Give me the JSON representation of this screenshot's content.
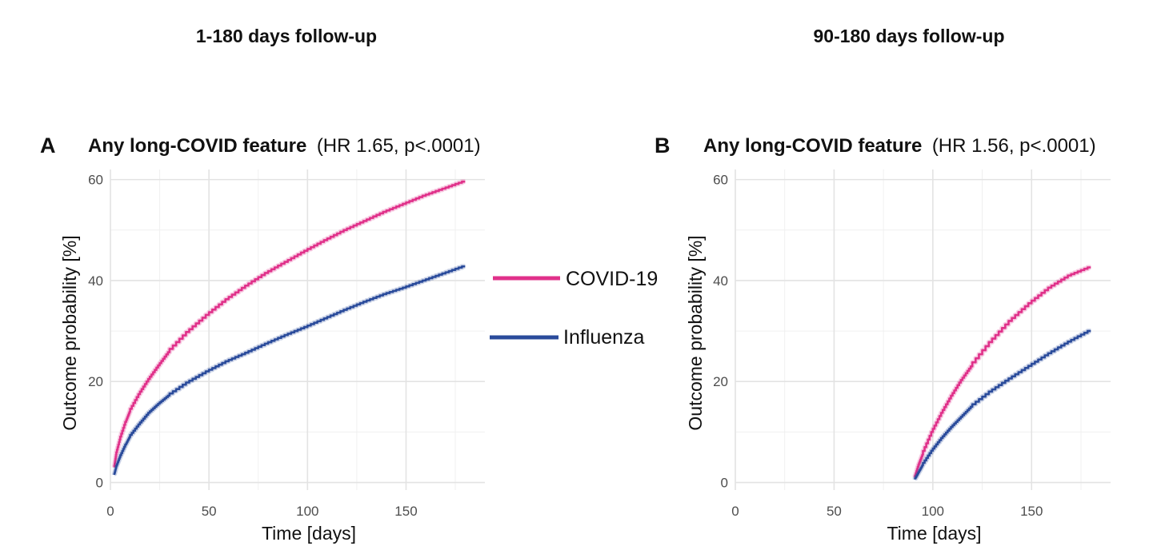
{
  "column_titles": [
    "1-180 days follow-up",
    "90-180 days follow-up"
  ],
  "legend": {
    "position": "center",
    "entries": [
      {
        "label": "COVID-19",
        "color": "#e0318a"
      },
      {
        "label": "Influenza",
        "color": "#2a4b9b"
      }
    ]
  },
  "chart_data": [
    {
      "type": "line",
      "panel_letter": "A",
      "title_bold": "Any long-COVID feature",
      "title_normal": "(HR 1.65, p<.0001)",
      "xlabel": "Time [days]",
      "ylabel": "Outcome probability [%]",
      "xlim": [
        0,
        190
      ],
      "ylim": [
        -1.5,
        62
      ],
      "xticks": [
        0,
        50,
        100,
        150
      ],
      "yticks": [
        0,
        20,
        40,
        60
      ],
      "grid": true,
      "series": [
        {
          "name": "COVID-19",
          "color": "#e0318a",
          "x": [
            2,
            3,
            5,
            8,
            10,
            15,
            20,
            25,
            30,
            40,
            50,
            60,
            70,
            80,
            90,
            100,
            110,
            120,
            130,
            140,
            150,
            160,
            170,
            180
          ],
          "y": [
            3.0,
            5.5,
            8.5,
            12.0,
            14.0,
            17.5,
            20.5,
            23.2,
            25.8,
            29.8,
            33.2,
            36.3,
            39.0,
            41.5,
            43.7,
            45.9,
            48.0,
            50.0,
            51.8,
            53.6,
            55.2,
            56.8,
            58.2,
            59.6
          ]
        },
        {
          "name": "Influenza",
          "color": "#2a4b9b",
          "x": [
            2,
            3,
            5,
            8,
            10,
            15,
            20,
            25,
            30,
            40,
            50,
            60,
            70,
            80,
            90,
            100,
            110,
            120,
            130,
            140,
            150,
            160,
            170,
            180
          ],
          "y": [
            1.5,
            3.0,
            5.0,
            7.5,
            9.0,
            11.5,
            13.8,
            15.6,
            17.2,
            19.8,
            22.0,
            24.0,
            25.7,
            27.5,
            29.2,
            30.8,
            32.5,
            34.2,
            35.8,
            37.3,
            38.6,
            40.0,
            41.4,
            42.8
          ]
        }
      ]
    },
    {
      "type": "line",
      "panel_letter": "B",
      "title_bold": "Any long-COVID feature",
      "title_normal": "(HR 1.56, p<.0001)",
      "xlabel": "Time [days]",
      "ylabel": "Outcome probability [%]",
      "xlim": [
        0,
        190
      ],
      "ylim": [
        -1.5,
        62
      ],
      "xticks": [
        0,
        50,
        100,
        150
      ],
      "yticks": [
        0,
        20,
        40,
        60
      ],
      "grid": true,
      "series": [
        {
          "name": "COVID-19",
          "color": "#e0318a",
          "x": [
            91,
            93,
            95,
            100,
            105,
            110,
            115,
            120,
            130,
            140,
            150,
            160,
            170,
            180
          ],
          "y": [
            1.0,
            3.5,
            5.5,
            10.0,
            13.8,
            17.2,
            20.3,
            23.0,
            27.8,
            32.0,
            35.5,
            38.6,
            41.0,
            42.6
          ]
        },
        {
          "name": "Influenza",
          "color": "#2a4b9b",
          "x": [
            91,
            93,
            95,
            100,
            105,
            110,
            115,
            120,
            130,
            140,
            150,
            160,
            170,
            180
          ],
          "y": [
            0.6,
            2.0,
            3.4,
            6.3,
            8.8,
            11.0,
            13.0,
            15.0,
            18.0,
            20.6,
            23.1,
            25.6,
            27.9,
            30.0
          ]
        }
      ]
    }
  ]
}
